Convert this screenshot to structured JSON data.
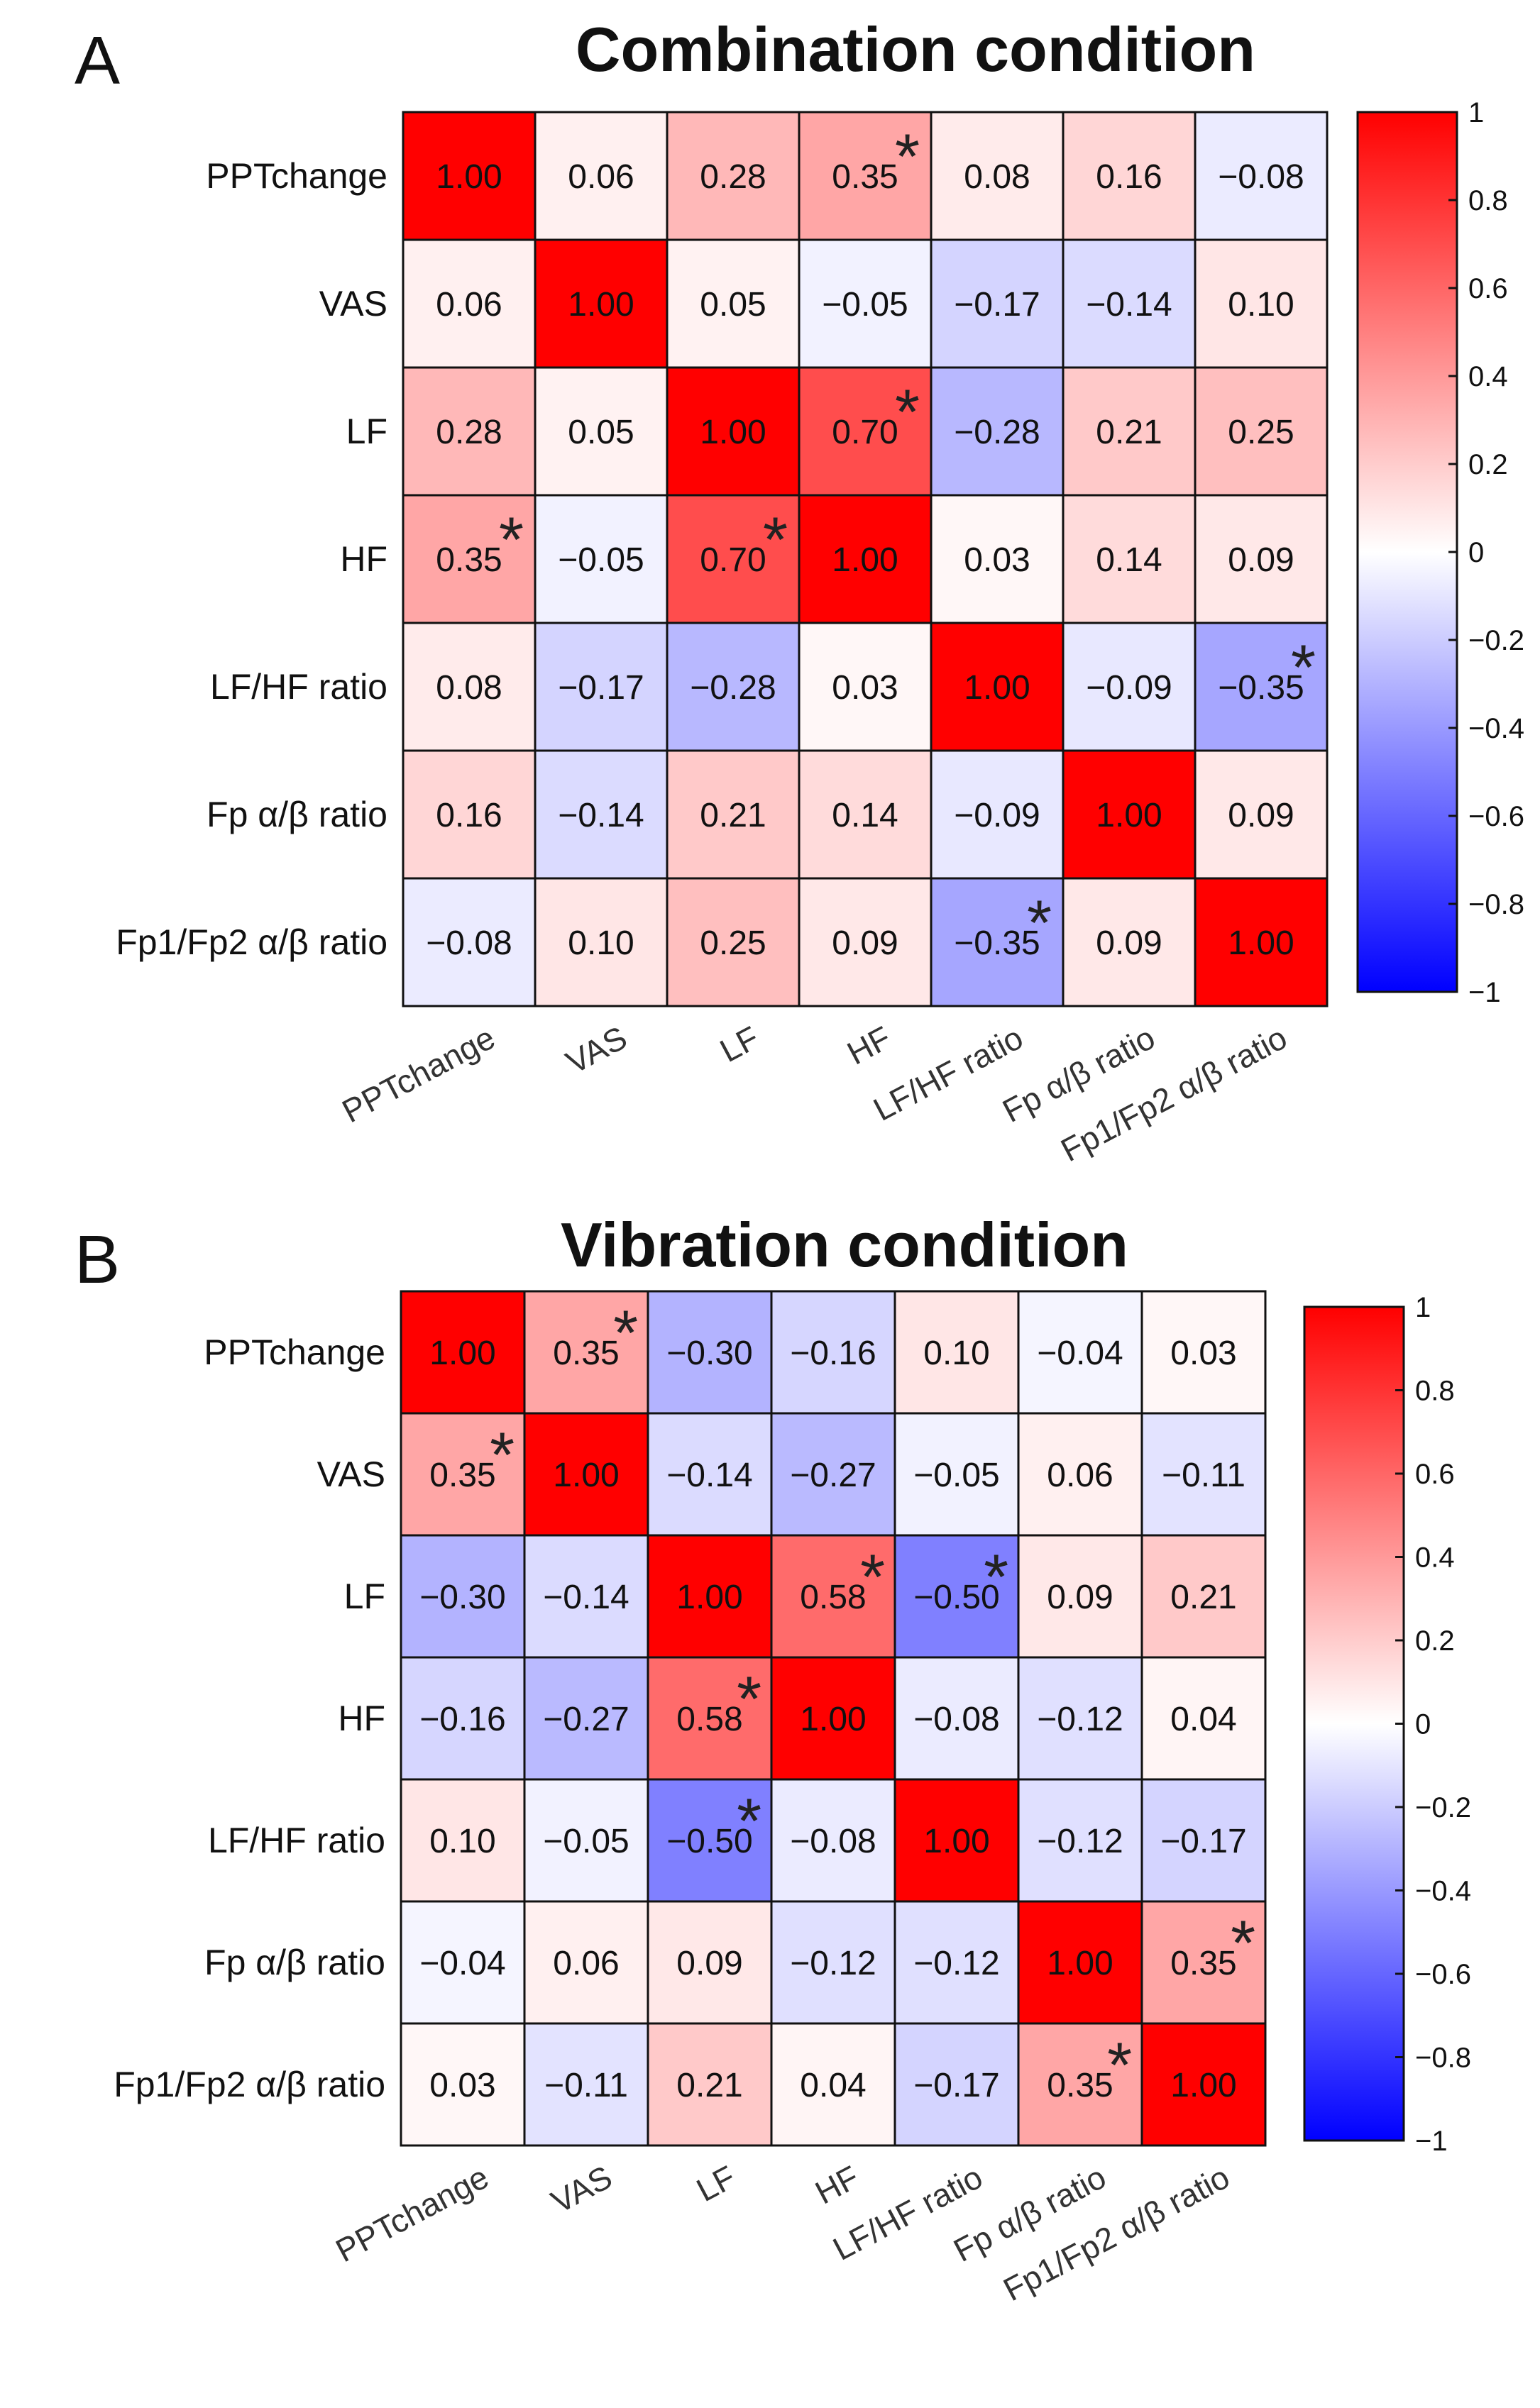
{
  "chart_data": [
    {
      "type": "heatmap",
      "panel": "A",
      "title": "Combination condition",
      "labels": [
        "PPTchange",
        "VAS",
        "LF",
        "HF",
        "LF/HF ratio",
        "Fp α/β ratio",
        "Fp1/Fp2 α/β ratio"
      ],
      "values": [
        [
          1.0,
          0.06,
          0.28,
          0.35,
          0.08,
          0.16,
          -0.08
        ],
        [
          0.06,
          1.0,
          0.05,
          -0.05,
          -0.17,
          -0.14,
          0.1
        ],
        [
          0.28,
          0.05,
          1.0,
          0.7,
          -0.28,
          0.21,
          0.25
        ],
        [
          0.35,
          -0.05,
          0.7,
          1.0,
          0.03,
          0.14,
          0.09
        ],
        [
          0.08,
          -0.17,
          -0.28,
          0.03,
          1.0,
          -0.09,
          -0.35
        ],
        [
          0.16,
          -0.14,
          0.21,
          0.14,
          -0.09,
          1.0,
          0.09
        ],
        [
          -0.08,
          0.1,
          0.25,
          0.09,
          -0.35,
          0.09,
          1.0
        ]
      ],
      "significant": [
        [
          0,
          3
        ],
        [
          2,
          3
        ],
        [
          3,
          0
        ],
        [
          3,
          2
        ],
        [
          4,
          6
        ],
        [
          6,
          4
        ]
      ],
      "colorbar": {
        "min": -1,
        "max": 1,
        "ticks": [
          "1",
          "0.8",
          "0.6",
          "0.4",
          "0.2",
          "0",
          "-0.2",
          "-0.4",
          "-0.6",
          "-0.8",
          "-1"
        ]
      }
    },
    {
      "type": "heatmap",
      "panel": "B",
      "title": "Vibration condition",
      "labels": [
        "PPTchange",
        "VAS",
        "LF",
        "HF",
        "LF/HF ratio",
        "Fp α/β ratio",
        "Fp1/Fp2 α/β ratio"
      ],
      "values": [
        [
          1.0,
          0.35,
          -0.3,
          -0.16,
          0.1,
          -0.04,
          0.03
        ],
        [
          0.35,
          1.0,
          -0.14,
          -0.27,
          -0.05,
          0.06,
          -0.11
        ],
        [
          -0.3,
          -0.14,
          1.0,
          0.58,
          -0.5,
          0.09,
          0.21
        ],
        [
          -0.16,
          -0.27,
          0.58,
          1.0,
          -0.08,
          -0.12,
          0.04
        ],
        [
          0.1,
          -0.05,
          -0.5,
          -0.08,
          1.0,
          -0.12,
          -0.17
        ],
        [
          -0.04,
          0.06,
          0.09,
          -0.12,
          -0.12,
          1.0,
          0.35
        ],
        [
          0.03,
          -0.11,
          0.21,
          0.04,
          -0.17,
          0.35,
          1.0
        ]
      ],
      "significant": [
        [
          0,
          1
        ],
        [
          1,
          0
        ],
        [
          2,
          3
        ],
        [
          2,
          4
        ],
        [
          3,
          2
        ],
        [
          4,
          2
        ],
        [
          5,
          6
        ],
        [
          6,
          5
        ]
      ],
      "colorbar": {
        "min": -1,
        "max": 1,
        "ticks": [
          "1",
          "0.8",
          "0.6",
          "0.4",
          "0.2",
          "0",
          "-0.2",
          "-0.4",
          "-0.6",
          "-0.8",
          "-1"
        ]
      }
    }
  ]
}
